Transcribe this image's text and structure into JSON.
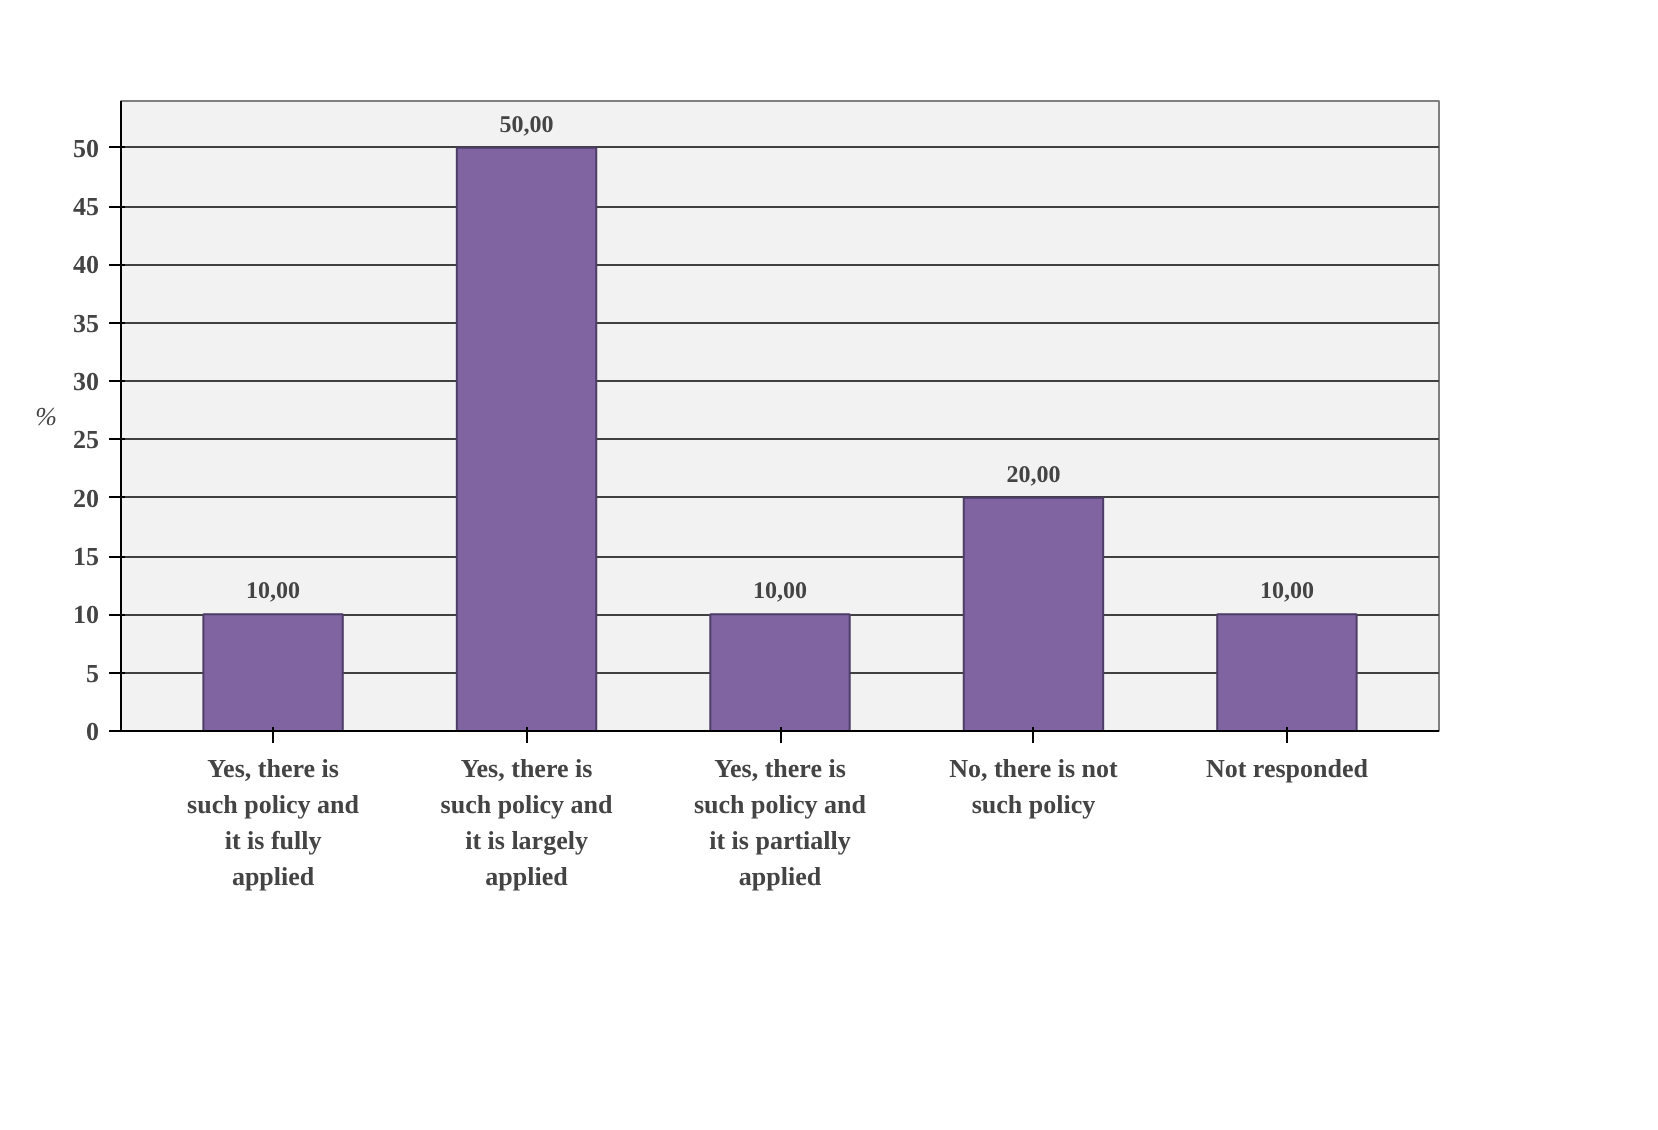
{
  "chart_data": {
    "type": "bar",
    "ylabel": "%",
    "categories": [
      "Yes, there is such policy and it is fully applied",
      "Yes, there is such policy and it is largely applied",
      "Yes, there is such policy and it is partially applied",
      "No, there is not such policy",
      "Not responded"
    ],
    "values": [
      10,
      50,
      10,
      20,
      10
    ],
    "value_labels": [
      "10,00",
      "50,00",
      "10,00",
      "20,00",
      "10,00"
    ],
    "color": "#8064a2",
    "ylim": [
      0,
      54
    ],
    "yticks": [
      0,
      5,
      10,
      15,
      20,
      25,
      30,
      35,
      40,
      45,
      50
    ],
    "grid": "y"
  }
}
